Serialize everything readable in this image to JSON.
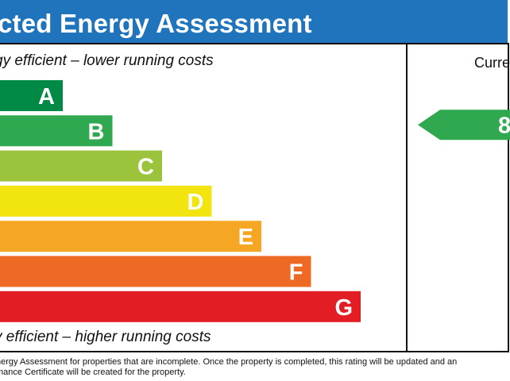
{
  "header": {
    "title": "cted Energy Assessment"
  },
  "captions": {
    "top": "gy efficient – lower running costs",
    "bottom": "y efficient – higher running costs"
  },
  "current_column": {
    "label": "Curre"
  },
  "chart_data": {
    "type": "bar",
    "orientation": "horizontal",
    "title": "cted Energy Assessment",
    "categories": [
      "A",
      "B",
      "C",
      "D",
      "E",
      "F",
      "G"
    ],
    "values": [
      1,
      2,
      3,
      4,
      5,
      6,
      7
    ],
    "colors": [
      "#008a46",
      "#2fa84f",
      "#9bc43c",
      "#f2e40f",
      "#f5a623",
      "#ee6a24",
      "#e31d24"
    ],
    "current_rating": {
      "value": "8",
      "band": "B",
      "color": "#2fa84f"
    },
    "xlabel": "",
    "ylabel": "",
    "legend": "none",
    "grid": false
  },
  "footer": {
    "line1": "nergy Assessment for properties that are incomplete. Once the property is completed, this rating will be updated and an",
    "line2": "mance Certificate will be created for the property."
  }
}
